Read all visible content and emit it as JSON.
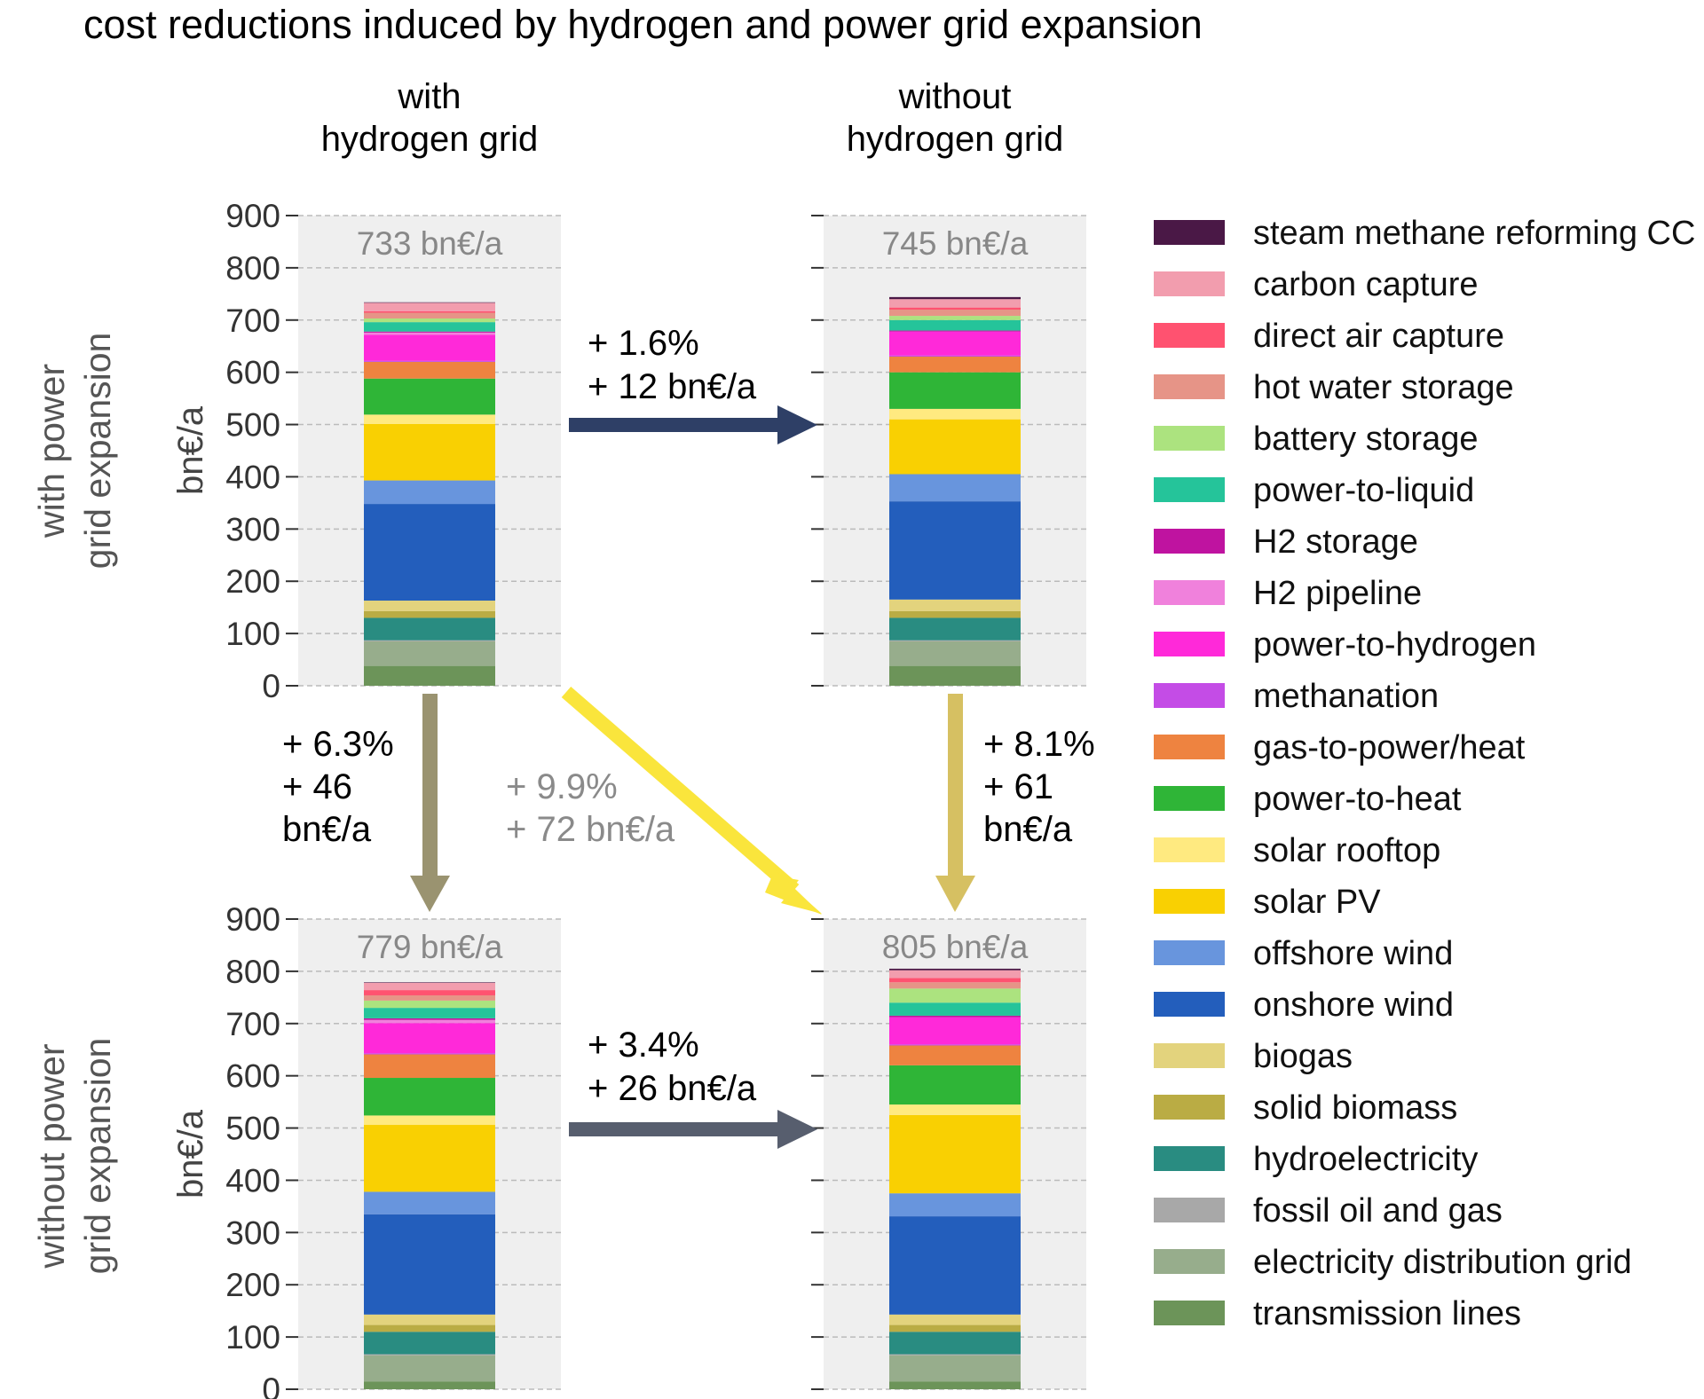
{
  "title": "cost reductions induced by hydrogen and power grid expansion",
  "col_headers": [
    {
      "line1": "with",
      "line2": "hydrogen grid"
    },
    {
      "line1": "without",
      "line2": "hydrogen grid"
    }
  ],
  "row_headers": [
    {
      "line1": "with power",
      "line2": "grid expansion"
    },
    {
      "line1": "without power",
      "line2": "grid expansion"
    }
  ],
  "colors": {
    "panel_bg": "#efefef",
    "grid": "#bbbbbb",
    "arrow_h_top": "#2e3f66",
    "arrow_h_bottom": "#575e6e",
    "arrow_v_left": "#9a9370",
    "arrow_v_right": "#d6c062",
    "arrow_diag": "#fae53c",
    "total_text": "#888888"
  },
  "arrows": [
    {
      "id": "top",
      "line1": "+ 1.6%",
      "line2": "+ 12 bn€/a"
    },
    {
      "id": "bottom",
      "line1": "+ 3.4%",
      "line2": "+ 26 bn€/a"
    },
    {
      "id": "left",
      "line1": "+ 6.3%",
      "line2": "+ 46",
      "line3": "bn€/a"
    },
    {
      "id": "right",
      "line1": "+ 8.1%",
      "line2": "+ 61",
      "line3": "bn€/a"
    },
    {
      "id": "diag",
      "line1": "+ 9.9%",
      "line2": "+ 72 bn€/a"
    }
  ],
  "legend": [
    {
      "label": "steam methane reforming CC",
      "color": "#4a1846"
    },
    {
      "label": "carbon capture",
      "color": "#f29dae"
    },
    {
      "label": "direct air capture",
      "color": "#ff5270"
    },
    {
      "label": "hot water storage",
      "color": "#e69487"
    },
    {
      "label": "battery storage",
      "color": "#ace37f"
    },
    {
      "label": "power-to-liquid",
      "color": "#25c49a"
    },
    {
      "label": "H2 storage",
      "color": "#bf13a0"
    },
    {
      "label": "H2 pipeline",
      "color": "#f081dc"
    },
    {
      "label": "power-to-hydrogen",
      "color": "#ff29d9"
    },
    {
      "label": "methanation",
      "color": "#c44ce6"
    },
    {
      "label": "gas-to-power/heat",
      "color": "#ee8340"
    },
    {
      "label": "power-to-heat",
      "color": "#2fb537"
    },
    {
      "label": "solar rooftop",
      "color": "#ffea80"
    },
    {
      "label": "solar PV",
      "color": "#f9d002"
    },
    {
      "label": "offshore wind",
      "color": "#6895dd"
    },
    {
      "label": "onshore wind",
      "color": "#235ebc"
    },
    {
      "label": "biogas",
      "color": "#e3d37d"
    },
    {
      "label": "solid biomass",
      "color": "#baac44"
    },
    {
      "label": "hydroelectricity",
      "color": "#298c81"
    },
    {
      "label": "fossil oil and gas",
      "color": "#a8a8a8"
    },
    {
      "label": "electricity distribution grid",
      "color": "#97ad8c"
    },
    {
      "label": "transmission lines",
      "color": "#6c9459"
    }
  ],
  "chart_data": [
    {
      "type": "bar",
      "stacked": true,
      "scenario": "with hydrogen grid / with power grid expansion",
      "total_label": "733 bn€/a",
      "ylabel": "bn€/a",
      "ylim": [
        0,
        900
      ],
      "yticks": [
        0,
        100,
        200,
        300,
        400,
        500,
        600,
        700,
        800,
        900
      ],
      "grid": true,
      "stack": [
        {
          "name": "transmission lines",
          "value": 38
        },
        {
          "name": "electricity distribution grid",
          "value": 47
        },
        {
          "name": "fossil oil and gas",
          "value": 2
        },
        {
          "name": "hydroelectricity",
          "value": 43
        },
        {
          "name": "solid biomass",
          "value": 13
        },
        {
          "name": "biogas",
          "value": 20
        },
        {
          "name": "onshore wind",
          "value": 185
        },
        {
          "name": "offshore wind",
          "value": 45
        },
        {
          "name": "solar PV",
          "value": 108
        },
        {
          "name": "solar rooftop",
          "value": 18
        },
        {
          "name": "power-to-heat",
          "value": 69
        },
        {
          "name": "gas-to-power/heat",
          "value": 32
        },
        {
          "name": "methanation",
          "value": 2
        },
        {
          "name": "power-to-hydrogen",
          "value": 50
        },
        {
          "name": "H2 pipeline",
          "value": 4
        },
        {
          "name": "H2 storage",
          "value": 2
        },
        {
          "name": "power-to-liquid",
          "value": 18
        },
        {
          "name": "battery storage",
          "value": 7
        },
        {
          "name": "hot water storage",
          "value": 11
        },
        {
          "name": "direct air capture",
          "value": 3
        },
        {
          "name": "carbon capture",
          "value": 16
        },
        {
          "name": "steam methane reforming CC",
          "value": 1
        }
      ]
    },
    {
      "type": "bar",
      "stacked": true,
      "scenario": "without hydrogen grid / with power grid expansion",
      "total_label": "745 bn€/a",
      "ylim": [
        0,
        900
      ],
      "yticks": [
        0,
        100,
        200,
        300,
        400,
        500,
        600,
        700,
        800,
        900
      ],
      "grid": true,
      "stack": [
        {
          "name": "transmission lines",
          "value": 38
        },
        {
          "name": "electricity distribution grid",
          "value": 47
        },
        {
          "name": "fossil oil and gas",
          "value": 2
        },
        {
          "name": "hydroelectricity",
          "value": 43
        },
        {
          "name": "solid biomass",
          "value": 13
        },
        {
          "name": "biogas",
          "value": 22
        },
        {
          "name": "onshore wind",
          "value": 188
        },
        {
          "name": "offshore wind",
          "value": 52
        },
        {
          "name": "solar PV",
          "value": 105
        },
        {
          "name": "solar rooftop",
          "value": 20
        },
        {
          "name": "power-to-heat",
          "value": 70
        },
        {
          "name": "gas-to-power/heat",
          "value": 30
        },
        {
          "name": "methanation",
          "value": 2
        },
        {
          "name": "power-to-hydrogen",
          "value": 46
        },
        {
          "name": "H2 pipeline",
          "value": 0
        },
        {
          "name": "H2 storage",
          "value": 2
        },
        {
          "name": "power-to-liquid",
          "value": 20
        },
        {
          "name": "battery storage",
          "value": 8
        },
        {
          "name": "hot water storage",
          "value": 12
        },
        {
          "name": "direct air capture",
          "value": 4
        },
        {
          "name": "carbon capture",
          "value": 16
        },
        {
          "name": "steam methane reforming CC",
          "value": 4
        }
      ]
    },
    {
      "type": "bar",
      "stacked": true,
      "scenario": "with hydrogen grid / without power grid expansion",
      "total_label": "779 bn€/a",
      "ylabel": "bn€/a",
      "ylim": [
        0,
        900
      ],
      "yticks": [
        0,
        100,
        200,
        300,
        400,
        500,
        600,
        700,
        800,
        900
      ],
      "grid": true,
      "stack": [
        {
          "name": "transmission lines",
          "value": 15
        },
        {
          "name": "electricity distribution grid",
          "value": 50
        },
        {
          "name": "fossil oil and gas",
          "value": 2
        },
        {
          "name": "hydroelectricity",
          "value": 43
        },
        {
          "name": "solid biomass",
          "value": 13
        },
        {
          "name": "biogas",
          "value": 20
        },
        {
          "name": "onshore wind",
          "value": 192
        },
        {
          "name": "offshore wind",
          "value": 43
        },
        {
          "name": "solar PV",
          "value": 128
        },
        {
          "name": "solar rooftop",
          "value": 18
        },
        {
          "name": "power-to-heat",
          "value": 72
        },
        {
          "name": "gas-to-power/heat",
          "value": 45
        },
        {
          "name": "methanation",
          "value": 2
        },
        {
          "name": "power-to-hydrogen",
          "value": 58
        },
        {
          "name": "H2 pipeline",
          "value": 6
        },
        {
          "name": "H2 storage",
          "value": 3
        },
        {
          "name": "power-to-liquid",
          "value": 20
        },
        {
          "name": "battery storage",
          "value": 14
        },
        {
          "name": "hot water storage",
          "value": 10
        },
        {
          "name": "direct air capture",
          "value": 10
        },
        {
          "name": "carbon capture",
          "value": 14
        },
        {
          "name": "steam methane reforming CC",
          "value": 1
        }
      ]
    },
    {
      "type": "bar",
      "stacked": true,
      "scenario": "without hydrogen grid / without power grid expansion",
      "total_label": "805 bn€/a",
      "ylim": [
        0,
        900
      ],
      "yticks": [
        0,
        100,
        200,
        300,
        400,
        500,
        600,
        700,
        800,
        900
      ],
      "grid": true,
      "stack": [
        {
          "name": "transmission lines",
          "value": 15
        },
        {
          "name": "electricity distribution grid",
          "value": 50
        },
        {
          "name": "fossil oil and gas",
          "value": 2
        },
        {
          "name": "hydroelectricity",
          "value": 43
        },
        {
          "name": "solid biomass",
          "value": 13
        },
        {
          "name": "biogas",
          "value": 20
        },
        {
          "name": "onshore wind",
          "value": 188
        },
        {
          "name": "offshore wind",
          "value": 44
        },
        {
          "name": "solar PV",
          "value": 150
        },
        {
          "name": "solar rooftop",
          "value": 20
        },
        {
          "name": "power-to-heat",
          "value": 75
        },
        {
          "name": "gas-to-power/heat",
          "value": 38
        },
        {
          "name": "methanation",
          "value": 2
        },
        {
          "name": "power-to-hydrogen",
          "value": 52
        },
        {
          "name": "H2 pipeline",
          "value": 0
        },
        {
          "name": "H2 storage",
          "value": 3
        },
        {
          "name": "power-to-liquid",
          "value": 25
        },
        {
          "name": "battery storage",
          "value": 27
        },
        {
          "name": "hot water storage",
          "value": 12
        },
        {
          "name": "direct air capture",
          "value": 8
        },
        {
          "name": "carbon capture",
          "value": 15
        },
        {
          "name": "steam methane reforming CC",
          "value": 3
        }
      ]
    }
  ]
}
